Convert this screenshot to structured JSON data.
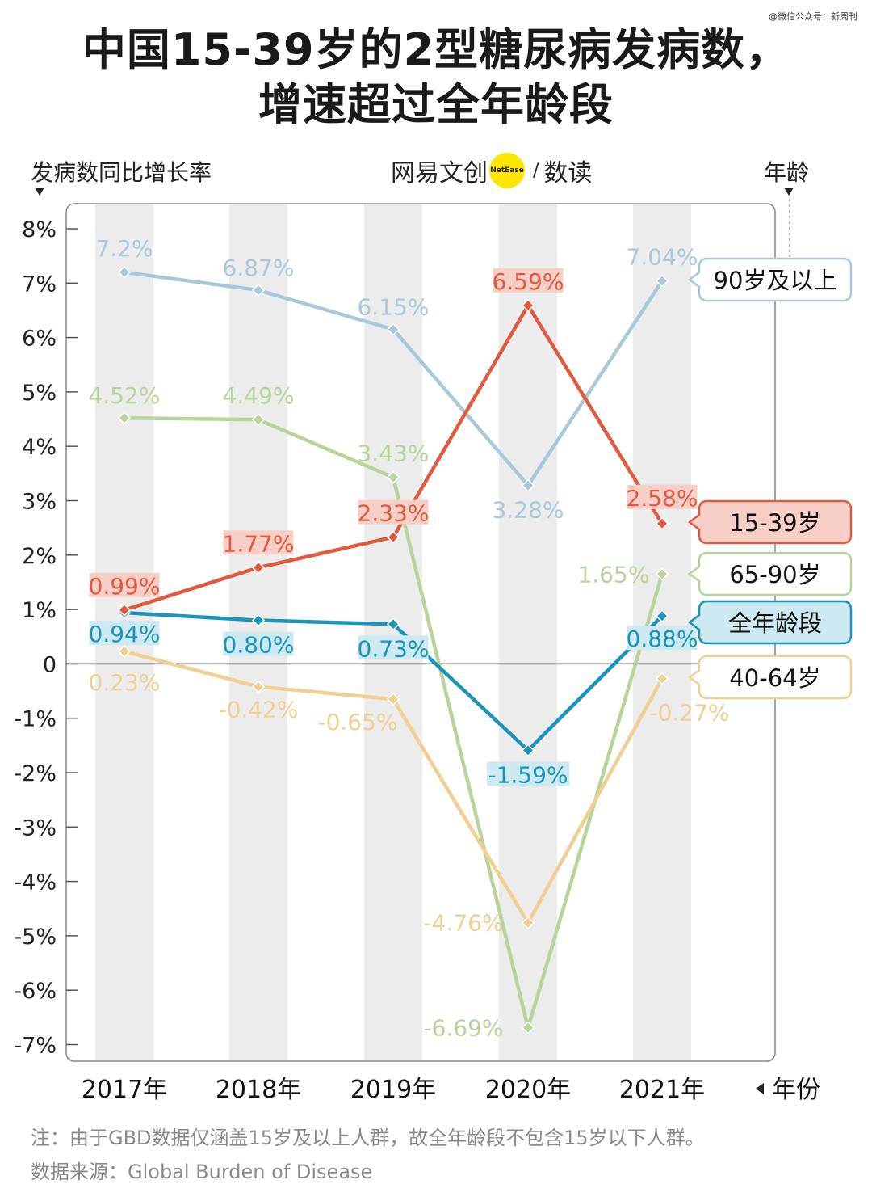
{
  "watermark": "@微信公众号：新周刊",
  "title_line1": "中国15-39岁的2型糖尿病发病数，",
  "title_line2": "增速超过全年龄段",
  "brand": {
    "part1": "网易文创",
    "logo_text": "NetEase",
    "part2": "数读"
  },
  "y_axis_title": "发病数同比增长率",
  "legend_axis_title": "年龄",
  "x_axis_title": "年份",
  "footnote": "注：由于GBD数据仅涵盖15岁及以上人群，故全年龄段不包含15岁以下人群。",
  "source": "数据来源：Global Burden of Disease",
  "chart_data": {
    "type": "line",
    "title": "中国15-39岁的2型糖尿病发病数，增速超过全年龄段",
    "ylabel": "发病数同比增长率",
    "xlabel": "年份",
    "categories": [
      "2017年",
      "2018年",
      "2019年",
      "2020年",
      "2021年"
    ],
    "ylim": [
      -7,
      8
    ],
    "yticks": [
      "8%",
      "7%",
      "6%",
      "5%",
      "4%",
      "3%",
      "2%",
      "1%",
      "0",
      "-1%",
      "-2%",
      "-3%",
      "-4%",
      "-5%",
      "-6%",
      "-7%"
    ],
    "ytick_values": [
      8,
      7,
      6,
      5,
      4,
      3,
      2,
      1,
      0,
      -1,
      -2,
      -3,
      -4,
      -5,
      -6,
      -7
    ],
    "legend_placement": "right",
    "series": [
      {
        "name": "90岁及以上",
        "color": "#a9c9d8",
        "label_style": "plain",
        "values": [
          7.2,
          6.87,
          6.15,
          3.28,
          7.04
        ],
        "labels": [
          "7.2%",
          "6.87%",
          "6.15%",
          "3.28%",
          "7.04%"
        ]
      },
      {
        "name": "15-39岁",
        "color": "#e05a3f",
        "label_style": "boxed",
        "box_color": "#f7cfc7",
        "values": [
          0.99,
          1.77,
          2.33,
          6.59,
          2.58
        ],
        "labels": [
          "0.99%",
          "1.77%",
          "2.33%",
          "6.59%",
          "2.58%"
        ]
      },
      {
        "name": "65-90岁",
        "color": "#b9d49a",
        "label_style": "plain",
        "values": [
          4.52,
          4.49,
          3.43,
          -6.69,
          1.65
        ],
        "labels": [
          "4.52%",
          "4.49%",
          "3.43%",
          "-6.69%",
          "1.65%"
        ]
      },
      {
        "name": "全年龄段",
        "color": "#1a94b8",
        "label_style": "boxed",
        "box_color": "#cde9f2",
        "values": [
          0.94,
          0.8,
          0.73,
          -1.59,
          0.88
        ],
        "labels": [
          "0.94%",
          "0.80%",
          "0.73%",
          "-1.59%",
          "0.88%"
        ]
      },
      {
        "name": "40-64岁",
        "color": "#efcf92",
        "label_style": "plain",
        "values": [
          0.23,
          -0.42,
          -0.65,
          -4.76,
          -0.27
        ],
        "labels": [
          "0.23%",
          "-0.42%",
          "-0.65%",
          "-4.76%",
          "-0.27%"
        ]
      }
    ],
    "legend": [
      {
        "label": "90岁及以上",
        "border": "#a9c9d8",
        "fill": "#ffffff"
      },
      {
        "label": "15-39岁",
        "border": "#e05a3f",
        "fill": "#f7cfc7"
      },
      {
        "label": "65-90岁",
        "border": "#b9d49a",
        "fill": "#ffffff"
      },
      {
        "label": "全年龄段",
        "border": "#1a94b8",
        "fill": "#cde9f2"
      },
      {
        "label": "40-64岁",
        "border": "#efcf92",
        "fill": "#ffffff"
      }
    ]
  }
}
